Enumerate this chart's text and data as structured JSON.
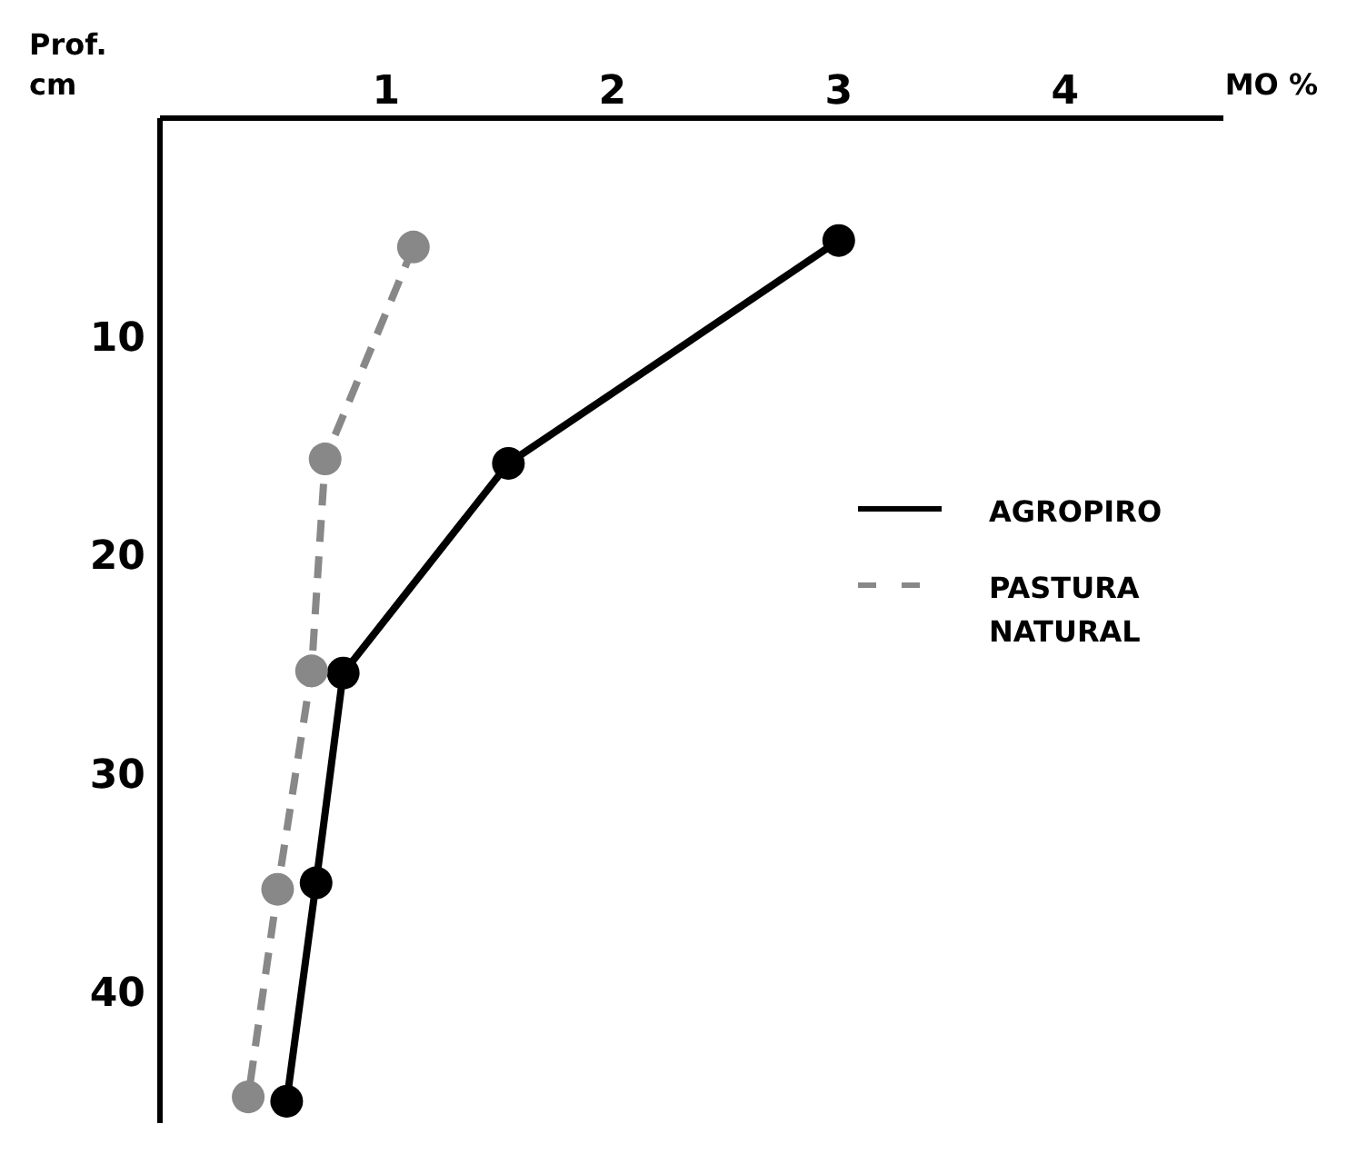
{
  "chart_data": {
    "type": "line",
    "xlabel": "MO %",
    "ylabel": "Prof.\ncm",
    "xlim": [
      0,
      4.7
    ],
    "xticks": [
      1,
      2,
      3,
      4
    ],
    "ylim": [
      46,
      0
    ],
    "yticks": [
      10,
      20,
      30,
      40
    ],
    "grid": false,
    "legend": "right",
    "marker": "circle",
    "series": [
      {
        "name": "AGROPIRO",
        "color": "#000000",
        "line_style": "solid",
        "x": [
          3.0,
          1.54,
          0.81,
          0.69,
          0.56
        ],
        "values": [
          5.6,
          15.8,
          25.4,
          35,
          45
        ]
      },
      {
        "name": "PASTURA\nNATURAL",
        "color": "#888888",
        "line_style": "dashed",
        "x": [
          1.12,
          0.73,
          0.67,
          0.52,
          0.39
        ],
        "values": [
          5.9,
          15.6,
          25.3,
          35.3,
          44.8
        ]
      }
    ]
  }
}
